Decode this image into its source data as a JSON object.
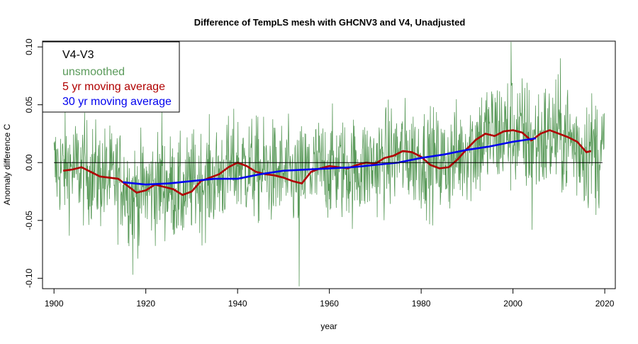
{
  "chart_data": {
    "type": "line",
    "title": "Difference of TempLS mesh with GHCNV3 and V4, Unadjusted",
    "xlabel": "year",
    "ylabel": "Anomaly difference C",
    "xlim": [
      1900,
      2020
    ],
    "ylim": [
      -0.1,
      0.1
    ],
    "x_ticks": [
      1900,
      1920,
      1940,
      1960,
      1980,
      2000,
      2020
    ],
    "y_ticks": [
      -0.1,
      -0.05,
      0.0,
      0.05,
      0.1
    ],
    "y_tick_labels": [
      "-0.10",
      "-0.05",
      "0.00",
      "0.05",
      "0.10"
    ],
    "zero_line": 0,
    "grid": false,
    "legend": {
      "position": "top-left",
      "title": "V4-V3",
      "entries": [
        {
          "label": "unsmoothed",
          "color": "#5a9a5a"
        },
        {
          "label": "5 yr moving average",
          "color": "#b00000"
        },
        {
          "label": "30 yr moving average",
          "color": "#0000ee"
        }
      ]
    },
    "series": [
      {
        "name": "unsmoothed",
        "color": "#5a9a5a",
        "note_points": "monthly values from 1900 to 2019",
        "anchor_x": [
          1900,
          1905,
          1910,
          1915,
          1917,
          1920,
          1925,
          1928,
          1930,
          1935,
          1940,
          1945,
          1950,
          1953,
          1955,
          1960,
          1965,
          1970,
          1975,
          1980,
          1985,
          1990,
          1995,
          2000,
          2005,
          2010,
          2015,
          2019
        ],
        "anchor_y": [
          -0.005,
          -0.005,
          -0.012,
          -0.016,
          -0.028,
          -0.022,
          -0.02,
          -0.028,
          -0.018,
          -0.014,
          -0.002,
          -0.008,
          -0.01,
          -0.016,
          -0.008,
          -0.004,
          -0.006,
          -0.002,
          0.008,
          0.004,
          -0.002,
          0.012,
          0.024,
          0.027,
          0.018,
          0.025,
          0.012,
          0.01
        ],
        "spread": 0.022,
        "spikes": [
          {
            "x": 1917.2,
            "y": -0.097
          },
          {
            "x": 1918.5,
            "y": -0.072
          },
          {
            "x": 1923.5,
            "y": 0.045
          },
          {
            "x": 1953.4,
            "y": -0.107
          },
          {
            "x": 1999.6,
            "y": 0.107
          },
          {
            "x": 2004.2,
            "y": -0.058
          }
        ]
      },
      {
        "name": "5 yr moving average",
        "color": "#b00000",
        "x": [
          1902,
          1904,
          1906,
          1908,
          1910,
          1912,
          1914,
          1916,
          1918,
          1920,
          1922,
          1924,
          1926,
          1928,
          1930,
          1932,
          1934,
          1936,
          1938,
          1940,
          1942,
          1944,
          1946,
          1948,
          1950,
          1952,
          1954,
          1956,
          1958,
          1960,
          1962,
          1964,
          1966,
          1968,
          1970,
          1972,
          1974,
          1976,
          1978,
          1980,
          1982,
          1984,
          1986,
          1988,
          1990,
          1992,
          1994,
          1996,
          1998,
          2000,
          2002,
          2004,
          2006,
          2008,
          2010,
          2012,
          2014,
          2016,
          2017
        ],
        "y": [
          -0.007,
          -0.006,
          -0.004,
          -0.008,
          -0.012,
          -0.013,
          -0.014,
          -0.02,
          -0.026,
          -0.024,
          -0.019,
          -0.021,
          -0.023,
          -0.028,
          -0.025,
          -0.016,
          -0.013,
          -0.01,
          -0.004,
          0.0,
          -0.003,
          -0.008,
          -0.01,
          -0.011,
          -0.013,
          -0.016,
          -0.018,
          -0.008,
          -0.005,
          -0.003,
          -0.004,
          -0.005,
          -0.002,
          0.0,
          -0.001,
          0.004,
          0.006,
          0.01,
          0.009,
          0.005,
          -0.002,
          -0.005,
          -0.004,
          0.003,
          0.012,
          0.02,
          0.025,
          0.023,
          0.027,
          0.028,
          0.026,
          0.019,
          0.025,
          0.028,
          0.025,
          0.022,
          0.018,
          0.009,
          0.01
        ]
      },
      {
        "name": "30 yr moving average",
        "color": "#0000ee",
        "x": [
          1915,
          1920,
          1925,
          1930,
          1935,
          1940,
          1945,
          1950,
          1955,
          1960,
          1965,
          1970,
          1975,
          1980,
          1985,
          1990,
          1995,
          2000,
          2005
        ],
        "y": [
          -0.017,
          -0.019,
          -0.018,
          -0.016,
          -0.014,
          -0.014,
          -0.01,
          -0.007,
          -0.006,
          -0.005,
          -0.004,
          -0.002,
          0.0,
          0.004,
          0.007,
          0.011,
          0.014,
          0.018,
          0.021
        ]
      }
    ]
  }
}
